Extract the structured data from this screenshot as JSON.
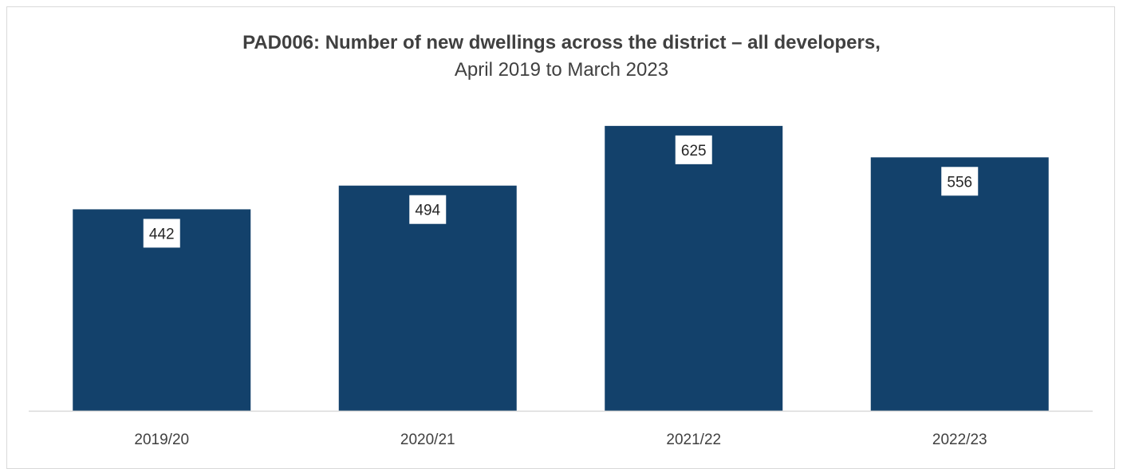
{
  "chart_data": {
    "type": "bar",
    "title": "PAD006: Number of new dwellings across the district – all developers,",
    "subtitle": "April 2019 to March 2023",
    "categories": [
      "2019/20",
      "2020/21",
      "2021/22",
      "2022/23"
    ],
    "values": [
      442,
      494,
      625,
      556
    ],
    "ylim": [
      0,
      700
    ],
    "grid": false,
    "legend": "none",
    "bar_color": "#13416b",
    "axis_color": "#d9d9d9"
  }
}
